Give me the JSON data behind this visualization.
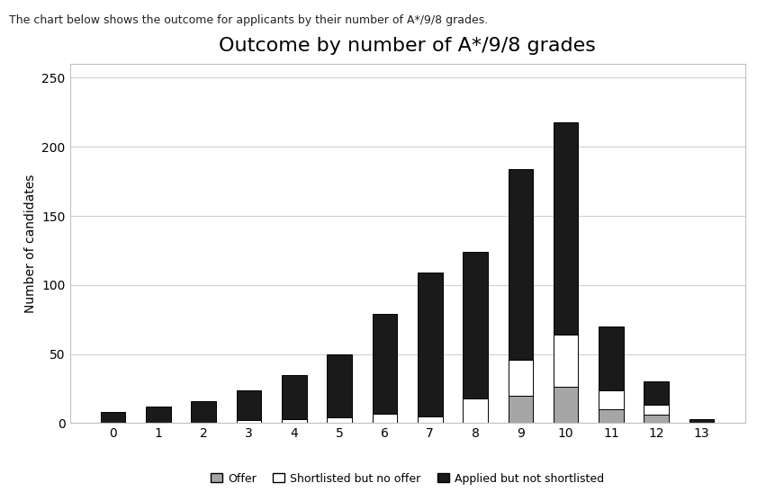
{
  "title": "Outcome by number of A*/9/8 grades",
  "xlabel": "",
  "ylabel": "Number of candidates",
  "categories": [
    0,
    1,
    2,
    3,
    4,
    5,
    6,
    7,
    8,
    9,
    10,
    11,
    12,
    13
  ],
  "offer": [
    0,
    0,
    0,
    0,
    0,
    0,
    0,
    0,
    0,
    20,
    26,
    10,
    6,
    0
  ],
  "shortlisted_no_offer": [
    0,
    0,
    0,
    2,
    3,
    4,
    7,
    5,
    18,
    26,
    38,
    14,
    7,
    0
  ],
  "applied_not_shortlisted": [
    8,
    12,
    16,
    22,
    32,
    46,
    72,
    104,
    106,
    138,
    154,
    46,
    17,
    3
  ],
  "color_offer": "#a6a6a6",
  "color_shortlisted": "#ffffff",
  "color_applied": "#1a1a1a",
  "bar_edgecolor": "#000000",
  "legend_labels": [
    "Offer",
    "Shortlisted but no offer",
    "Applied but not shortlisted"
  ],
  "ylim": [
    0,
    260
  ],
  "yticks": [
    0,
    50,
    100,
    150,
    200,
    250
  ],
  "title_fontsize": 16,
  "axis_fontsize": 10,
  "legend_fontsize": 9,
  "background_color": "#ffffff",
  "chart_bg": "#ffffff",
  "subtitle": "The chart below shows the outcome for applicants by their number of A*/9/8 grades.",
  "grid_color": "#d0d0d0",
  "border_color": "#c0c0c0"
}
